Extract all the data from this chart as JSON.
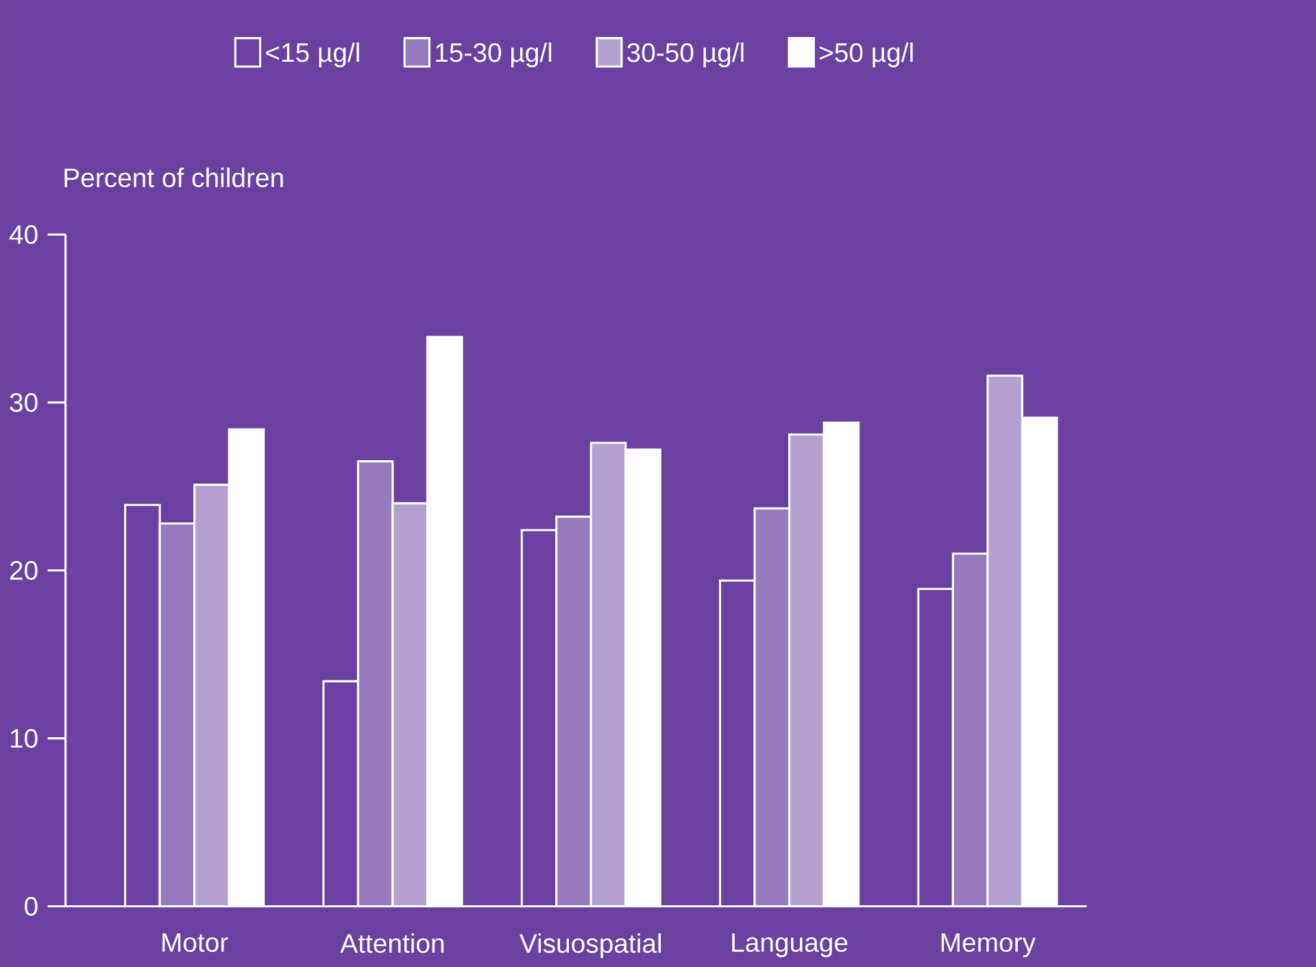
{
  "chart_data": {
    "type": "bar",
    "ylabel": "Percent of children",
    "categories": [
      "Motor",
      "Attention",
      "Visuospatial",
      "Language",
      "Memory"
    ],
    "series": [
      {
        "name": "<15 µg/l",
        "color": "#ffffff",
        "values": [
          23.9,
          13.4,
          22.4,
          19.4,
          18.9
        ]
      },
      {
        "name": "15-30 µg/l",
        "color": "#ffffff",
        "values": [
          22.8,
          26.5,
          23.2,
          23.7,
          21.0
        ]
      },
      {
        "name": "30-50 µg/l",
        "color": "#ffffff",
        "values": [
          25.1,
          24.0,
          27.6,
          28.1,
          31.6
        ]
      },
      {
        "name": ">50 µg/l",
        "color": "#ffffff",
        "values": [
          28.4,
          33.9,
          27.2,
          28.8,
          29.1
        ]
      }
    ],
    "ylim": [
      0,
      40
    ],
    "yticks": [
      0,
      10,
      20,
      30,
      40
    ],
    "legend": "top"
  }
}
